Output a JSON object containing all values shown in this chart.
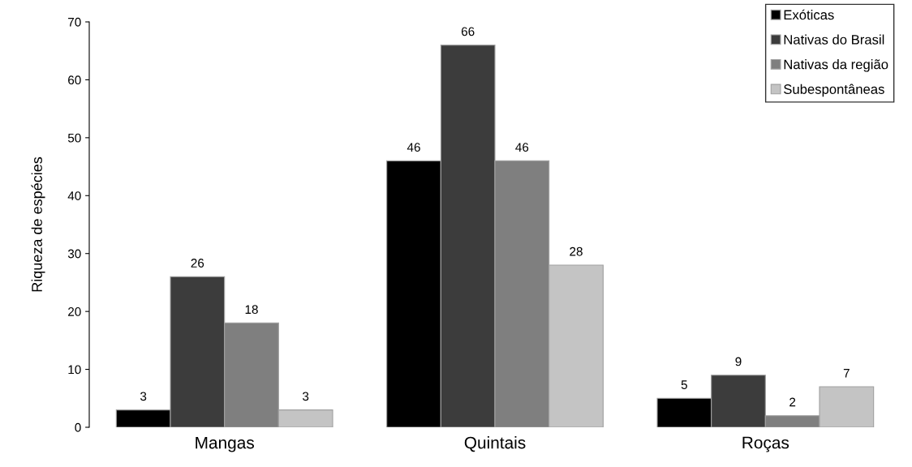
{
  "chart_data": {
    "type": "bar",
    "ylabel": "Riqueza de espécies",
    "categories": [
      "Mangas",
      "Quintais",
      "Roças"
    ],
    "series": [
      {
        "name": "Exóticas",
        "color": "#000000",
        "values": [
          3,
          46,
          5
        ]
      },
      {
        "name": "Nativas do Brasil",
        "color": "#3c3c3c",
        "values": [
          26,
          66,
          9
        ]
      },
      {
        "name": "Nativas da região",
        "color": "#7f7f7f",
        "values": [
          18,
          46,
          2
        ]
      },
      {
        "name": "Subespontâneas",
        "color": "#c4c4c4",
        "values": [
          3,
          28,
          7
        ]
      }
    ],
    "ylim": [
      0,
      70
    ],
    "yticks": [
      0,
      10,
      20,
      30,
      40,
      50,
      60,
      70
    ],
    "data_labels": true,
    "grid": false,
    "legend": "top right"
  }
}
